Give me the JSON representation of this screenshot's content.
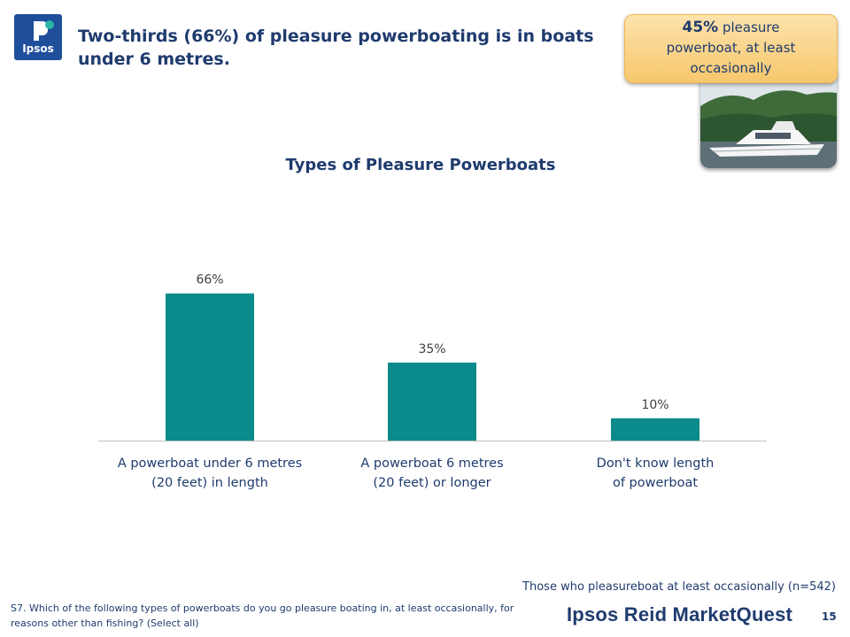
{
  "logo": {
    "text": "Ipsos"
  },
  "header": {
    "title_line1": "Two-thirds (66%) of pleasure powerboating is in boats",
    "title_line2": "under 6 metres."
  },
  "callout": {
    "percent": "45%",
    "text_a": "pleasure",
    "text_b": "powerboat, at least",
    "text_c": "occasionally"
  },
  "chart_data": {
    "type": "bar",
    "title": "Types of Pleasure Powerboats",
    "categories": [
      [
        "A powerboat under 6 metres",
        "(20 feet) in length"
      ],
      [
        "A powerboat 6 metres",
        "(20 feet) or longer"
      ],
      [
        "Don't know length",
        "of powerboat"
      ]
    ],
    "values": [
      66,
      35,
      10
    ],
    "value_labels": [
      "66%",
      "35%",
      "10%"
    ],
    "ylim": [
      0,
      100
    ],
    "bar_color": "#0a8a8a",
    "axis_color": "#bfbfbf",
    "grid": false
  },
  "footer": {
    "base_note": "Those who pleasureboat at least occasionally (n=542)",
    "question": "S7. Which of the following types of powerboats do you go pleasure boating in, at least occasionally, for reasons other than fishing? (Select all)",
    "brand": "Ipsos Reid MarketQuest",
    "page_number": "15"
  }
}
